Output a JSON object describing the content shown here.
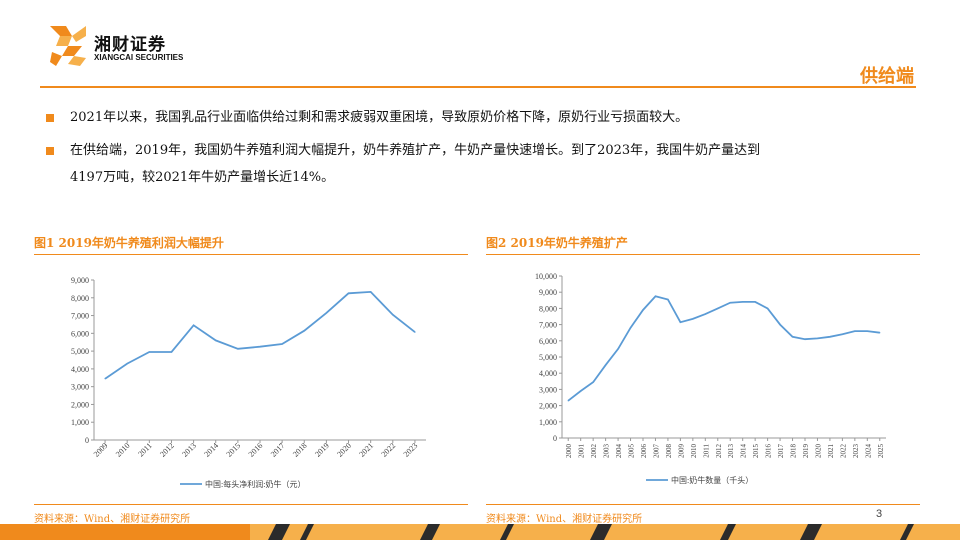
{
  "header": {
    "brand_cn": "湘财证券",
    "brand_en": "XIANGCAI SECURITIES",
    "section_title": "供给端",
    "colors": {
      "accent": "#f08a1c",
      "accent_light": "#f6b04b",
      "line": "#5b9bd5",
      "footer_dark": "#2b2b2b"
    }
  },
  "bullets": [
    {
      "text": "2021年以来，我国乳品行业面临供给过剩和需求疲弱双重困境，导致原奶价格下降，原奶行业亏损面较大。"
    },
    {
      "line1": "在供给端，2019年，我国奶牛养殖利润大幅提升，奶牛养殖扩产，牛奶产量快速增长。到了2023年，我国牛奶产量达到",
      "line2": "4197万吨，较2021年牛奶产量增长近14%。"
    }
  ],
  "figures": [
    {
      "title": "图1 2019年奶牛养殖利润大幅提升",
      "source": "资料来源：Wind、湘财证券研究所"
    },
    {
      "title": "图2 2019年奶牛养殖扩产",
      "source": "资料来源：Wind、湘财证券研究所"
    }
  ],
  "page_number": "3",
  "chart_data": [
    {
      "type": "line",
      "x": [
        "2009",
        "2010",
        "2011",
        "2012",
        "2013",
        "2014",
        "2015",
        "2016",
        "2017",
        "2018",
        "2019",
        "2020",
        "2021",
        "2022",
        "2023"
      ],
      "series": [
        {
          "name": "中国:每头净利润:奶牛（元）",
          "values": [
            3450,
            4300,
            4950,
            4950,
            6450,
            5600,
            5130,
            5250,
            5400,
            6150,
            7150,
            8250,
            8330,
            7050,
            6070
          ]
        }
      ],
      "yticks": [
        "0",
        "1,000",
        "2,000",
        "3,000",
        "4,000",
        "5,000",
        "6,000",
        "7,000",
        "8,000",
        "9,000"
      ],
      "ylim": [
        0,
        9000
      ],
      "grid": false,
      "legend": "bottom"
    },
    {
      "type": "line",
      "x": [
        "2000",
        "2001",
        "2002",
        "2003",
        "2004",
        "2005",
        "2006",
        "2007",
        "2008",
        "2009",
        "2010",
        "2011",
        "2012",
        "2013",
        "2014",
        "2015",
        "2016",
        "2017",
        "2018",
        "2019",
        "2020",
        "2021",
        "2022",
        "2023",
        "2024",
        "2025"
      ],
      "series": [
        {
          "name": "中国:奶牛数量（千头）",
          "values": [
            2300,
            2900,
            3450,
            4500,
            5500,
            6800,
            7900,
            8750,
            8550,
            7150,
            7350,
            7650,
            8000,
            8350,
            8400,
            8400,
            8000,
            7000,
            6250,
            6100,
            6150,
            6250,
            6400,
            6600,
            6600,
            6500
          ]
        }
      ],
      "yticks": [
        "0",
        "1,000",
        "2,000",
        "3,000",
        "4,000",
        "5,000",
        "6,000",
        "7,000",
        "8,000",
        "9,000",
        "10,000"
      ],
      "ylim": [
        0,
        10000
      ],
      "grid": false,
      "legend": "bottom"
    }
  ]
}
